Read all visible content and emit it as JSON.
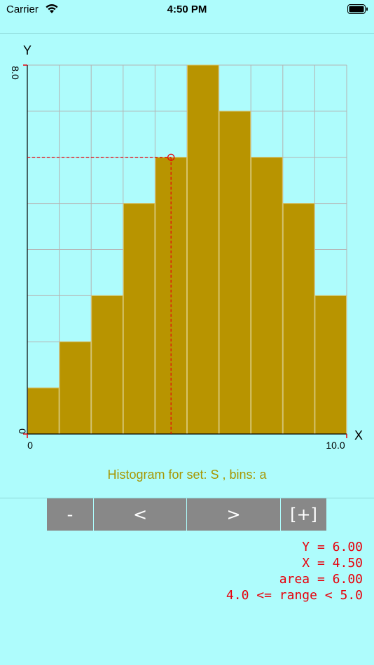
{
  "status": {
    "carrier": "Carrier",
    "time": "4:50 PM"
  },
  "chart_data": {
    "type": "bar",
    "title": "",
    "xlabel": "X",
    "ylabel": "Y",
    "xlim": [
      0,
      10.0
    ],
    "ylim": [
      0,
      8.0
    ],
    "x_tick_labels": [
      "0",
      "10.0"
    ],
    "y_tick_labels": [
      "0",
      "8.0"
    ],
    "bin_edges": [
      0,
      1,
      2,
      3,
      4,
      5,
      6,
      7,
      8,
      9,
      10
    ],
    "values": [
      1,
      2,
      3,
      5,
      6,
      8,
      7,
      6,
      5,
      3
    ],
    "grid": true,
    "bar_color": "#b89400",
    "cursor": {
      "x": 4.5,
      "y": 6.0,
      "color": "#e8000b"
    }
  },
  "caption": "Histogram for set: S , bins: a",
  "controls": {
    "minus": "-",
    "prev": "<",
    "next": ">",
    "plus": "[+]"
  },
  "readout": {
    "y": "Y = 6.00",
    "x": "X = 4.50",
    "area": "area = 6.00",
    "range": "4.0 <= range < 5.0"
  },
  "colors": {
    "background": "#aefcfc",
    "accent": "#a79600",
    "readout": "#e8000b",
    "button": "#888888"
  }
}
